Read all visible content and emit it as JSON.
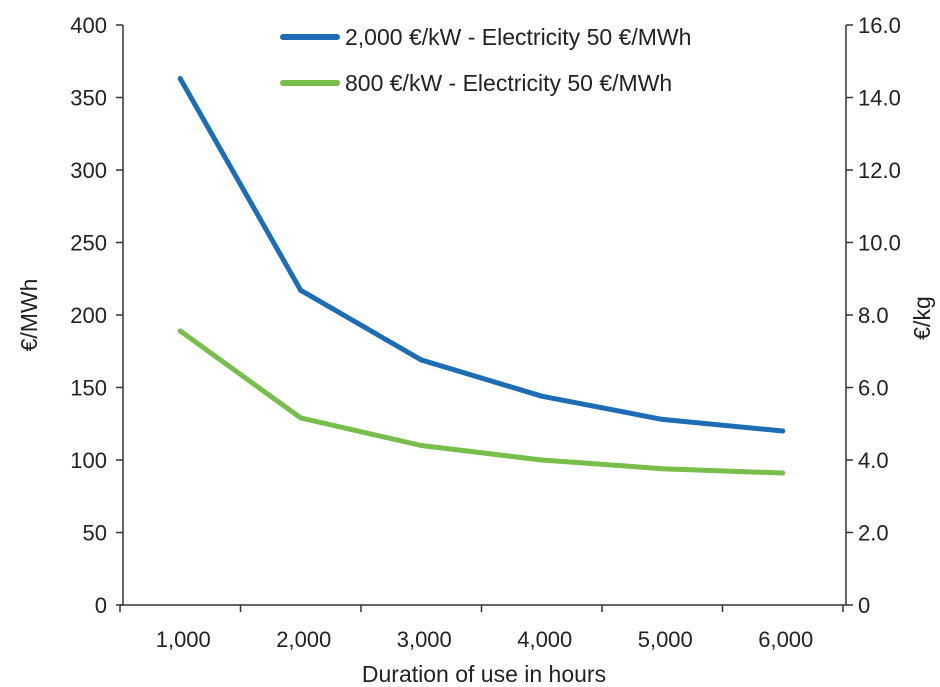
{
  "chart_data": {
    "type": "line",
    "x": [
      1000,
      2000,
      3000,
      4000,
      5000,
      6000
    ],
    "x_tick_labels": [
      "1,000",
      "2,000",
      "3,000",
      "4,000",
      "5,000",
      "6,000"
    ],
    "xlabel": "Duration of use in hours",
    "ylabel": "€/MWh",
    "y2label": "€/kg",
    "ylim": [
      0,
      400
    ],
    "y_ticks": [
      0,
      50,
      100,
      150,
      200,
      250,
      300,
      350,
      400
    ],
    "y2lim": [
      0,
      16
    ],
    "y2_tick_labels": [
      "0",
      "2.0",
      "4.0",
      "6.0",
      "8.0",
      "10.0",
      "12.0",
      "14.0",
      "16.0"
    ],
    "legend_position": "top-right",
    "grid": false,
    "series": [
      {
        "name": "2,000 €/kW - Electricity 50 €/MWh",
        "color": "#1c6db5",
        "values": [
          363,
          217,
          169,
          144,
          128,
          120
        ]
      },
      {
        "name": "800 €/kW - Electricity 50 €/MWh",
        "color": "#77bf4a",
        "values": [
          189,
          129,
          110,
          100,
          94,
          91
        ]
      }
    ]
  }
}
